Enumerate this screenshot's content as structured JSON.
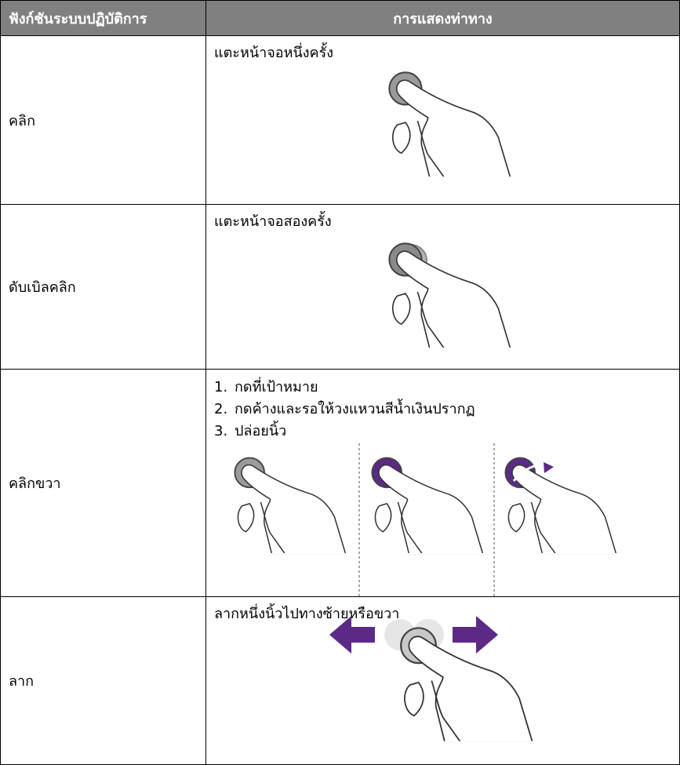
{
  "table": {
    "headers": [
      "ฟังก์ชันระบบปฏิบัติการ",
      "การแสดงท่าทาง"
    ],
    "rows": [
      {
        "function": "คลิก",
        "description": "แตะหน้าจอหนึ่งครั้ง"
      },
      {
        "function": "ดับเบิลคลิก",
        "description": "แตะหน้าจอสองครั้ง"
      },
      {
        "function": "คลิกขวา",
        "steps": [
          {
            "number": "1.",
            "text": "กดที่เป้าหมาย"
          },
          {
            "number": "2.",
            "text": "กดค้างและรอให้วงแหวนสีน้ำเงินปรากฏ"
          },
          {
            "number": "3.",
            "text": "ปล่อยนิ้ว"
          }
        ]
      },
      {
        "function": "ลาก",
        "description": "ลากหนึ่งนิ้วไปทางซ้ายหรือขวา"
      }
    ]
  }
}
